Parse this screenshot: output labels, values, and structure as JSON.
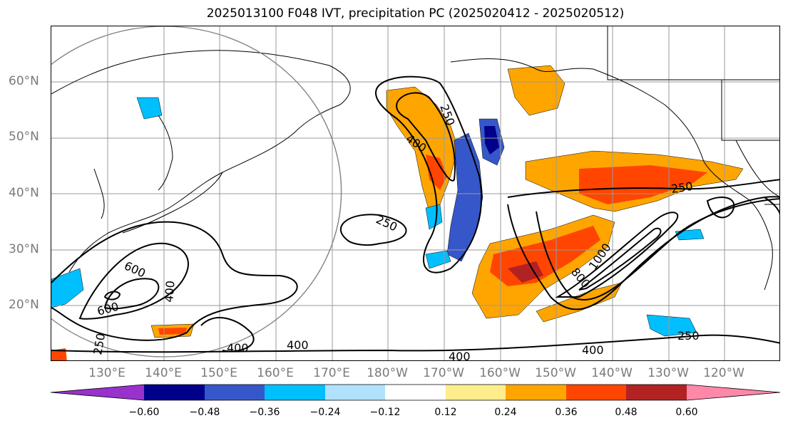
{
  "title": "2025013100 F048 IVT, precipitation PC (2025020412 - 2025020512)",
  "map": {
    "latitude_labels": [
      "60°N",
      "50°N",
      "40°N",
      "30°N",
      "20°N"
    ],
    "longitude_labels": [
      "130°E",
      "140°E",
      "150°E",
      "160°E",
      "170°E",
      "180°W",
      "170°W",
      "160°W",
      "150°W",
      "140°W",
      "130°W",
      "120°W"
    ],
    "ivt_contour_labels": [
      "250",
      "400",
      "250",
      "400",
      "600",
      "600",
      "400",
      "250",
      "400",
      "400",
      "400",
      "250",
      "800",
      "1000",
      "250",
      "250"
    ],
    "extent": {
      "lon_min": "120°E",
      "lon_max": "110°W",
      "lat_min": 10,
      "lat_max": 70
    },
    "grid": true
  },
  "colorbar": {
    "ticks": [
      "−0.60",
      "−0.48",
      "−0.36",
      "−0.24",
      "−0.12",
      "0.12",
      "0.24",
      "0.36",
      "0.48",
      "0.60"
    ],
    "colors": [
      "#9932cc",
      "#00008b",
      "#3657c9",
      "#00bfff",
      "#b0e2ff",
      "#ffffff",
      "#ffec8b",
      "#ffa500",
      "#ff4500",
      "#b22222",
      "#ff88a8"
    ],
    "extend": "both"
  }
}
